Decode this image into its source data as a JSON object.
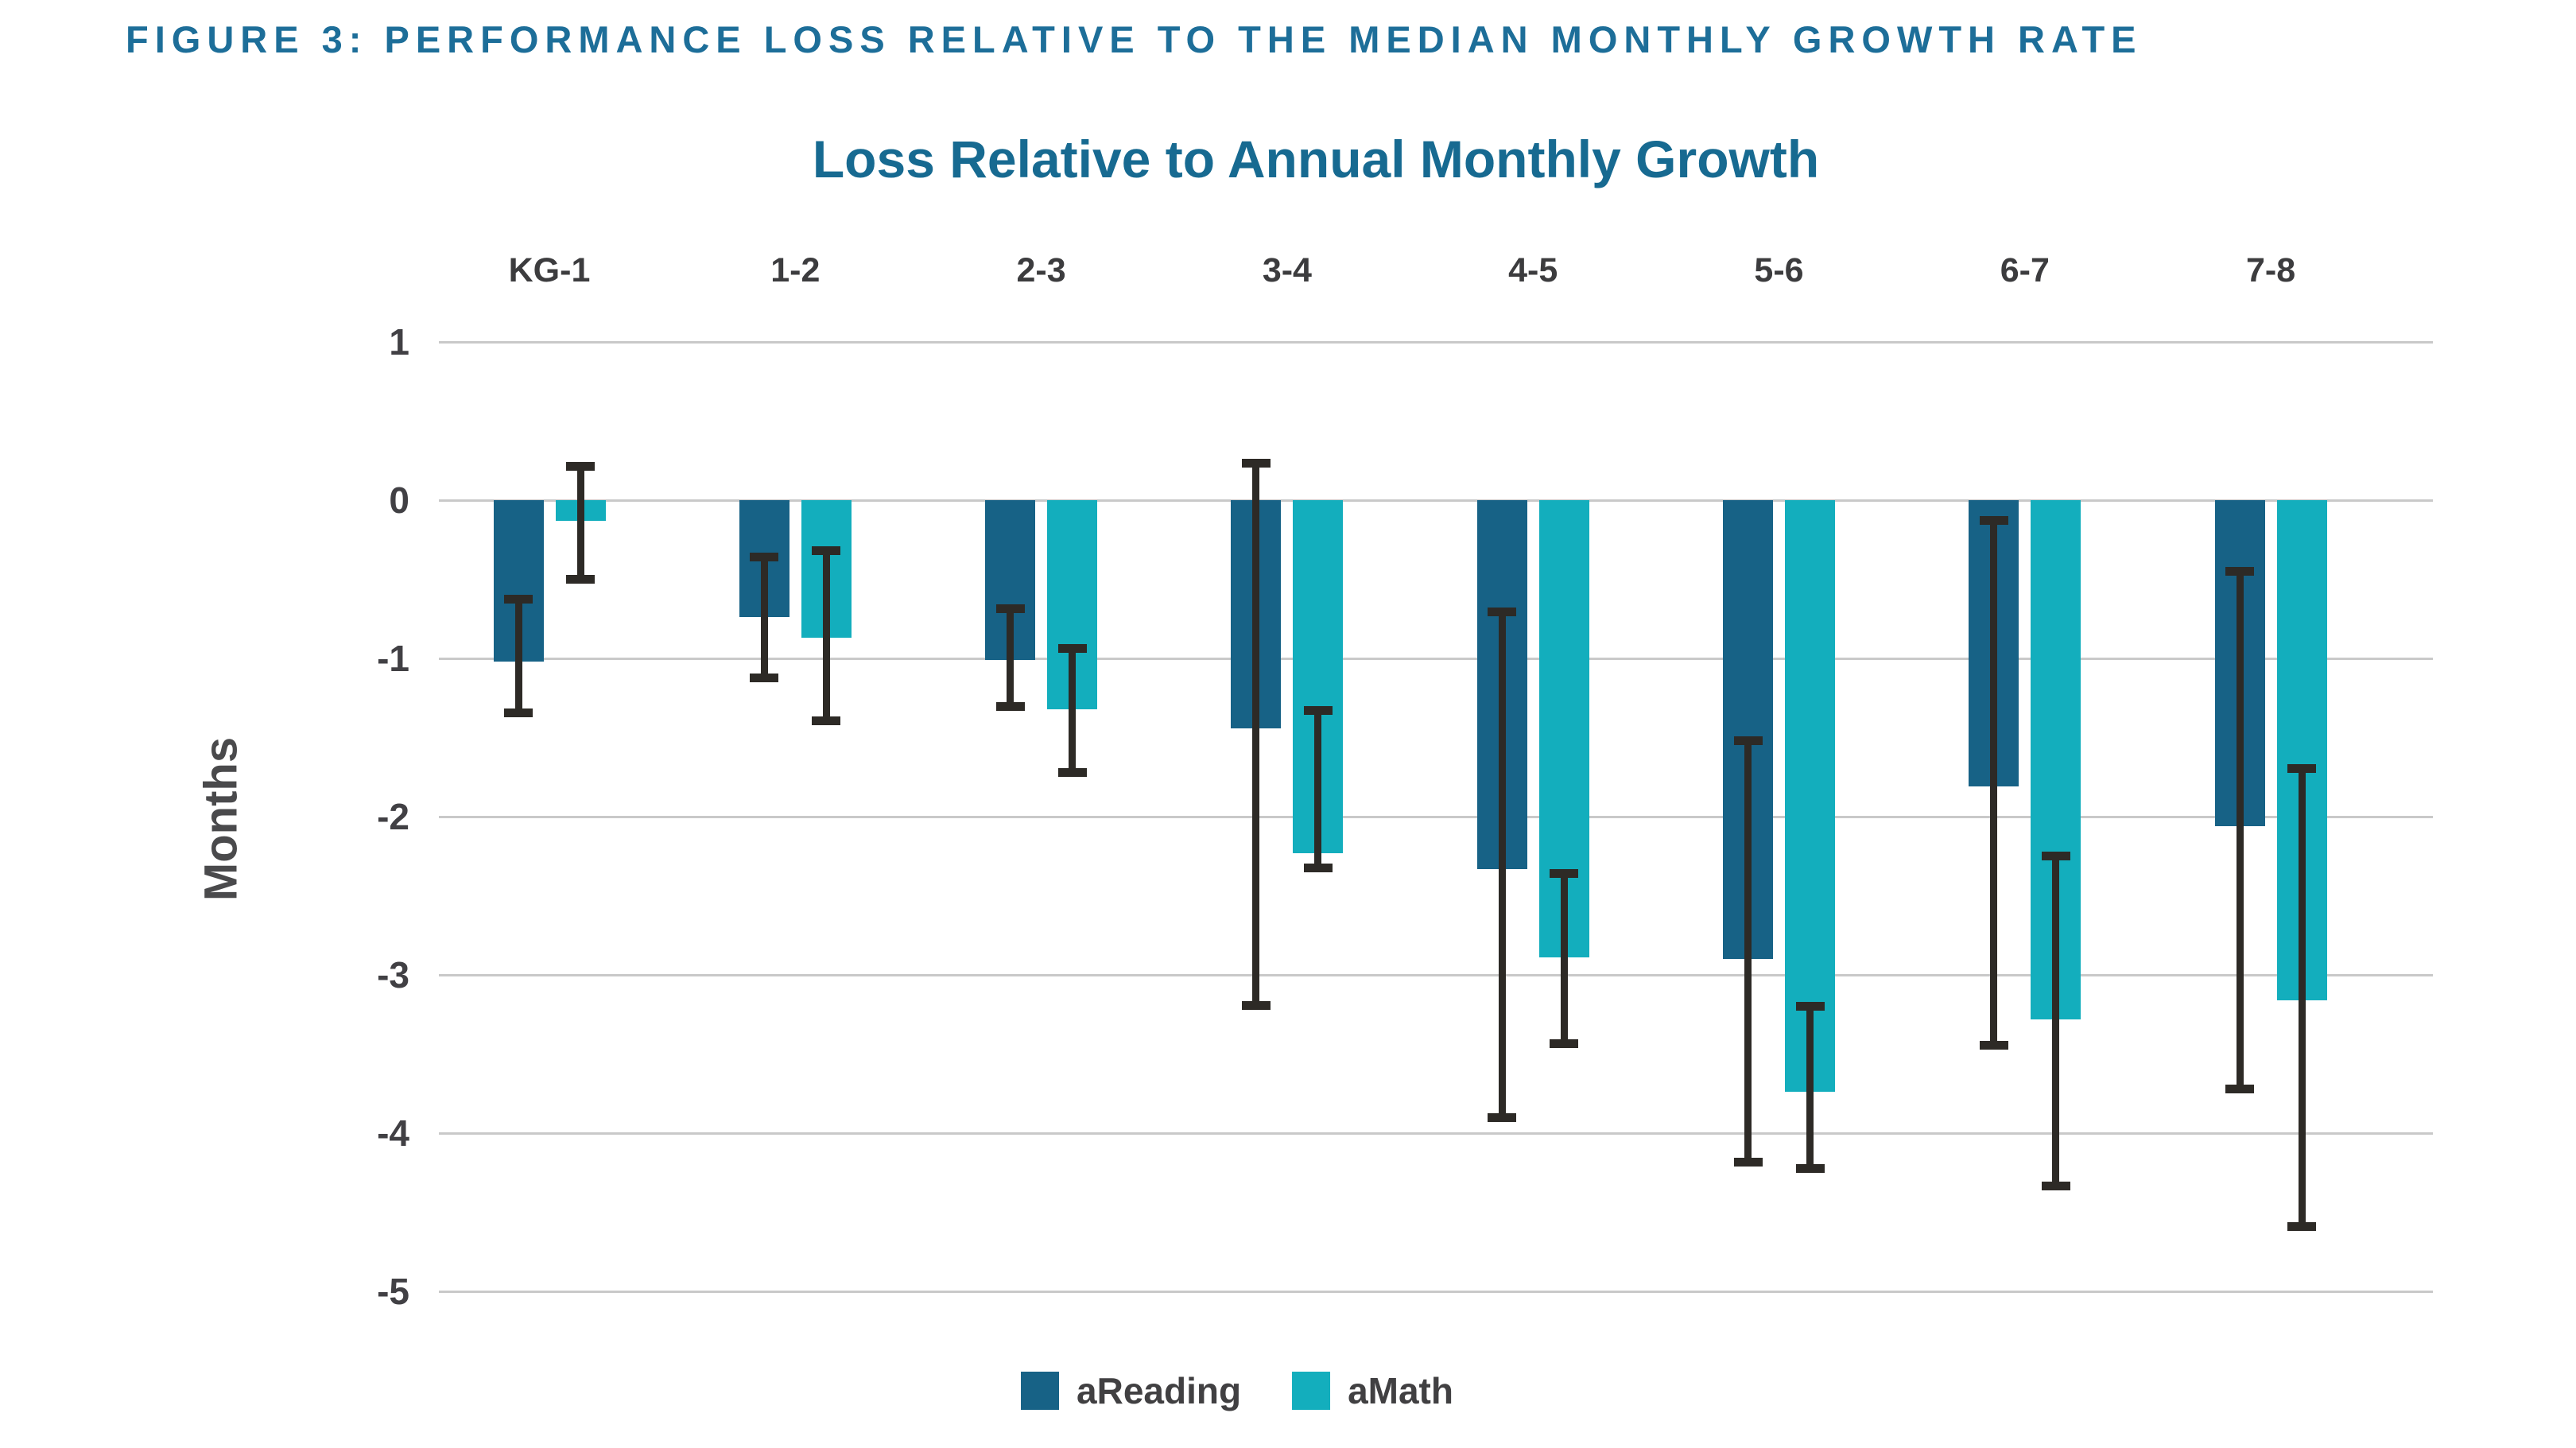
{
  "figure_heading": "FIGURE 3: PERFORMANCE LOSS RELATIVE TO THE MEDIAN MONTHLY GROWTH RATE",
  "chart_data": {
    "type": "bar",
    "title": "Loss Relative to Annual Monthly Growth",
    "ylabel": "Months",
    "xlabel": "",
    "categories": [
      "KG-1",
      "1-2",
      "2-3",
      "3-4",
      "4-5",
      "5-6",
      "6-7",
      "7-8"
    ],
    "series": [
      {
        "name": "aReading",
        "color": "#176286",
        "values": [
          -1.02,
          -0.74,
          -1.01,
          -1.44,
          -2.33,
          -2.9,
          -1.81,
          -2.06
        ],
        "ci_upper": [
          -0.6,
          -0.33,
          -0.66,
          0.26,
          -0.68,
          -1.49,
          -0.1,
          -0.42
        ],
        "ci_lower": [
          -1.37,
          -1.15,
          -1.33,
          -3.22,
          -3.93,
          -4.21,
          -3.47,
          -3.75
        ]
      },
      {
        "name": "aMath",
        "color": "#13aebd",
        "values": [
          -0.13,
          -0.87,
          -1.32,
          -2.23,
          -2.89,
          -3.74,
          -3.28,
          -3.16
        ],
        "ci_upper": [
          0.24,
          -0.29,
          -0.91,
          -1.3,
          -2.33,
          -3.17,
          -2.22,
          -1.67
        ],
        "ci_lower": [
          -0.53,
          -1.42,
          -1.75,
          -2.35,
          -3.46,
          -4.25,
          -4.36,
          -4.62
        ]
      }
    ],
    "ylim": [
      -5,
      1
    ],
    "yticks": [
      1,
      0,
      -1,
      -2,
      -3,
      -4,
      -5
    ],
    "grid": true,
    "legend_position": "bottom",
    "error_bars": true,
    "error_bar_color": "#2d2a26",
    "gridline_color": "#c9c9c9"
  },
  "legend": {
    "items": [
      {
        "label": "aReading",
        "color": "#176286"
      },
      {
        "label": "aMath",
        "color": "#13aebd"
      }
    ]
  },
  "colors": {
    "heading_blue": "#1d6e99",
    "title_blue": "#176a91",
    "axis_text": "#414044",
    "background": "#ffffff"
  }
}
